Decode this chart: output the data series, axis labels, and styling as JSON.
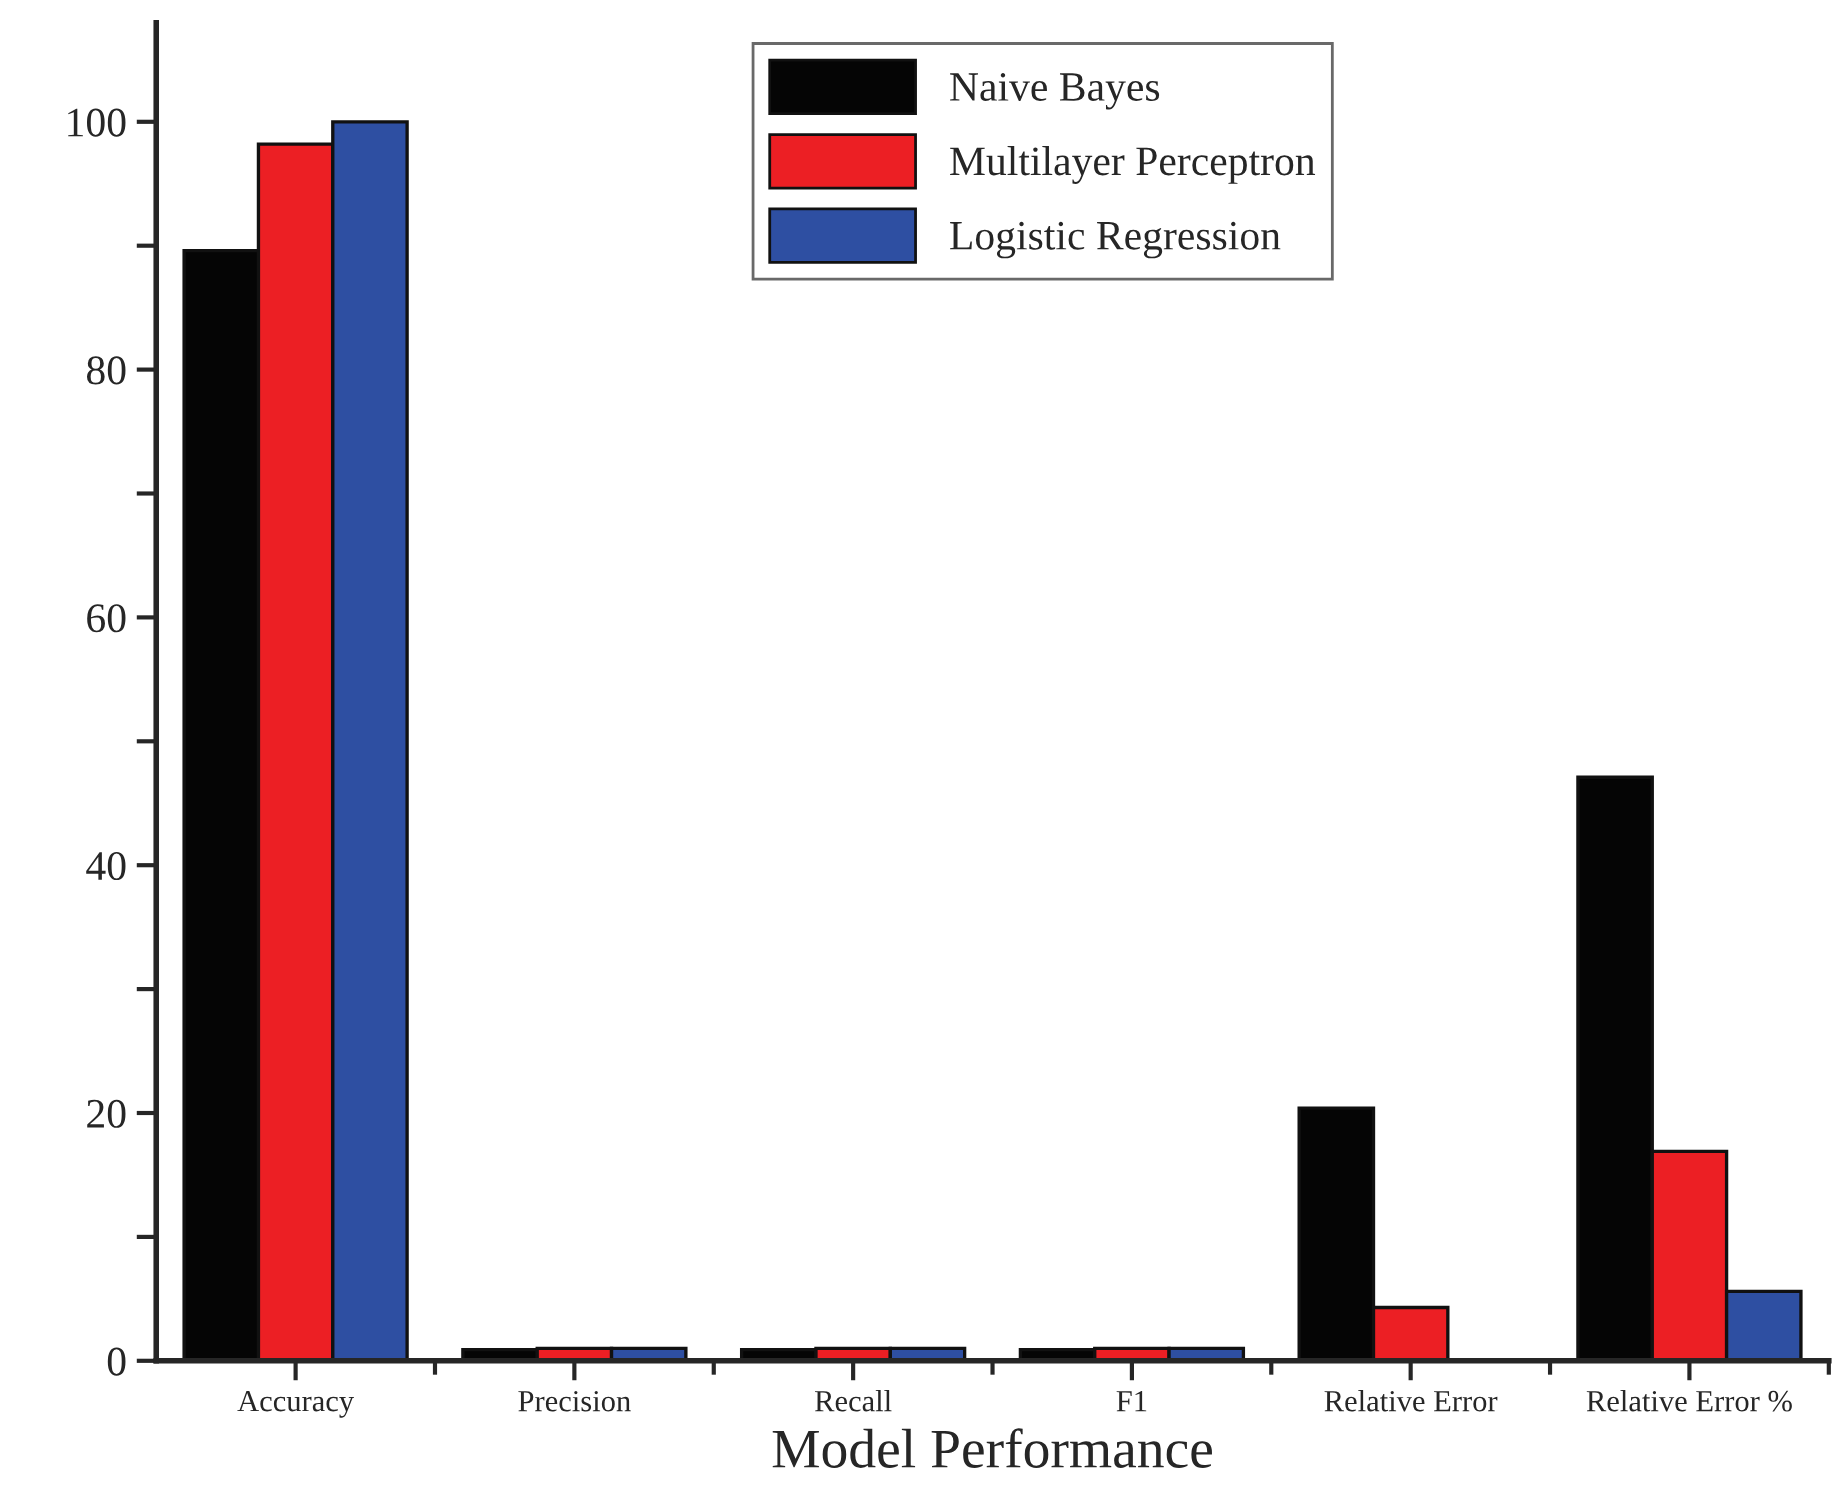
{
  "chart_data": {
    "type": "bar",
    "xlabel": "Model Performance",
    "categories": [
      "Accuracy",
      "Precision",
      "Recall",
      "F1",
      "Relative Error",
      "Relative Error %"
    ],
    "series": [
      {
        "name": "Naive Bayes",
        "color": "#050505",
        "values": [
          89.6,
          0.9,
          0.9,
          0.9,
          20.4,
          47.1
        ]
      },
      {
        "name": "Multilayer Perceptron",
        "color": "#ec1f24",
        "values": [
          98.2,
          1.0,
          1.0,
          1.0,
          4.3,
          16.9
        ]
      },
      {
        "name": "Logistic Regression",
        "color": "#2e4fa2",
        "values": [
          100,
          1.0,
          1.0,
          1.0,
          0.1,
          5.6
        ]
      }
    ],
    "ylim": [
      0,
      108
    ],
    "yticks": [
      0,
      {
        "value": 10,
        "label": null
      },
      20,
      {
        "value": 30,
        "label": null
      },
      40,
      {
        "value": 50,
        "label": null
      },
      60,
      {
        "value": 70,
        "label": null
      },
      80,
      {
        "value": 90,
        "label": null
      },
      100
    ],
    "legend": "top center",
    "grid": false
  }
}
